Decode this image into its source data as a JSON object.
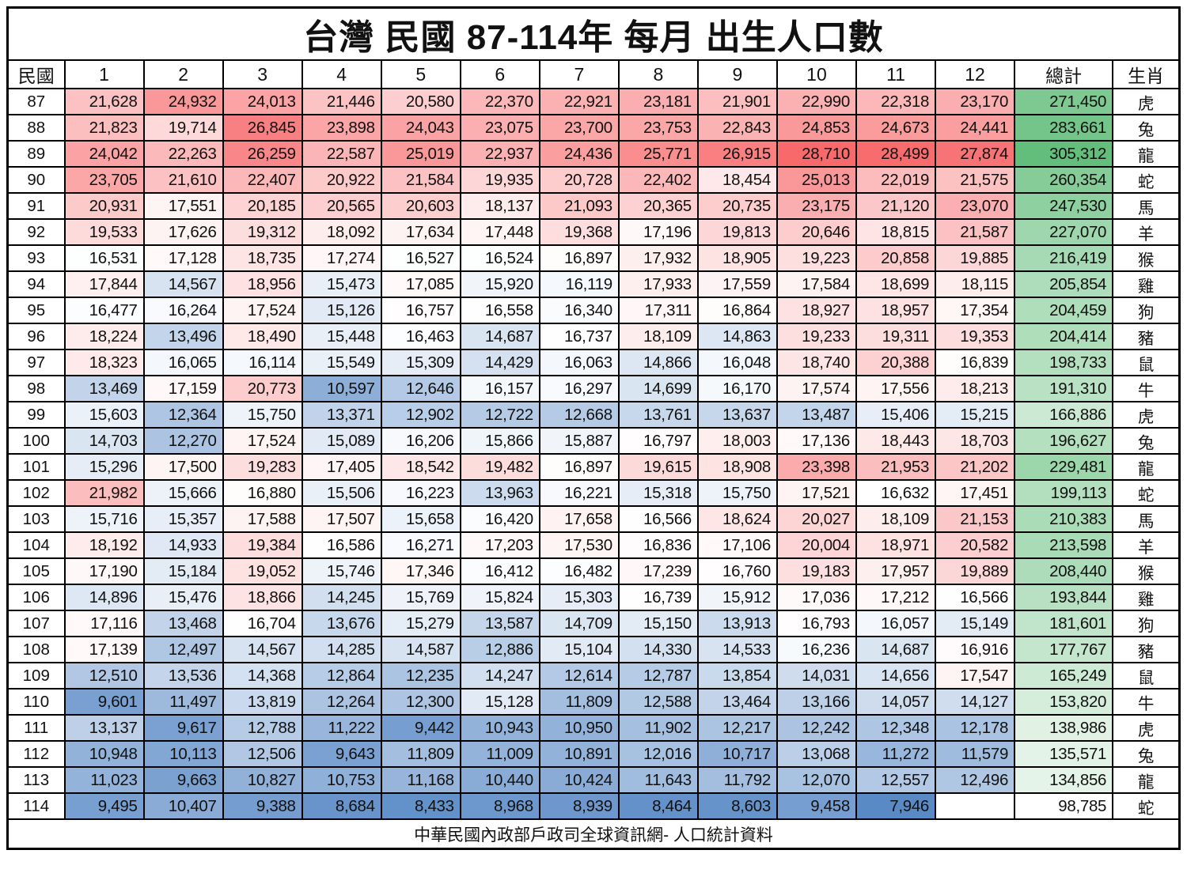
{
  "title": "台灣 民國 87-114年 每月 出生人口數",
  "footer": "中華民國內政部戶政司全球資訊網- 人口統計資料",
  "colors": {
    "heat_high_red": "#F8696B",
    "heat_mid_white": "#FFFFFF",
    "heat_low_blue": "#5A8AC6",
    "total_high_green": "#63BE7B",
    "total_low_white": "#FFFFFF",
    "grid_black": "#000000"
  },
  "chart_data": {
    "type": "heatmap",
    "title": "台灣 民國 87-114年 每月 出生人口數",
    "columns": [
      "民國",
      "1",
      "2",
      "3",
      "4",
      "5",
      "6",
      "7",
      "8",
      "9",
      "10",
      "11",
      "12",
      "總計",
      "生肖"
    ],
    "x_labels": [
      "1",
      "2",
      "3",
      "4",
      "5",
      "6",
      "7",
      "8",
      "9",
      "10",
      "11",
      "12"
    ],
    "row_label_header": "民國",
    "total_header": "總計",
    "zodiac_header": "生肖",
    "legend_position": "none",
    "grid": true,
    "rows": [
      {
        "year": "87",
        "months": [
          21628,
          24932,
          24013,
          21446,
          20580,
          22370,
          22921,
          23181,
          21901,
          22990,
          22318,
          23170
        ],
        "total": 271450,
        "zodiac": "虎"
      },
      {
        "year": "88",
        "months": [
          21823,
          19714,
          26845,
          23898,
          24043,
          23075,
          23700,
          23753,
          22843,
          24853,
          24673,
          24441
        ],
        "total": 283661,
        "zodiac": "兔"
      },
      {
        "year": "89",
        "months": [
          24042,
          22263,
          26259,
          22587,
          25019,
          22937,
          24436,
          25771,
          26915,
          28710,
          28499,
          27874
        ],
        "total": 305312,
        "zodiac": "龍"
      },
      {
        "year": "90",
        "months": [
          23705,
          21610,
          22407,
          20922,
          21584,
          19935,
          20728,
          22402,
          18454,
          25013,
          22019,
          21575
        ],
        "total": 260354,
        "zodiac": "蛇"
      },
      {
        "year": "91",
        "months": [
          20931,
          17551,
          20185,
          20565,
          20603,
          18137,
          21093,
          20365,
          20735,
          23175,
          21120,
          23070
        ],
        "total": 247530,
        "zodiac": "馬"
      },
      {
        "year": "92",
        "months": [
          19533,
          17626,
          19312,
          18092,
          17634,
          17448,
          19368,
          17196,
          19813,
          20646,
          18815,
          21587
        ],
        "total": 227070,
        "zodiac": "羊"
      },
      {
        "year": "93",
        "months": [
          16531,
          17128,
          18735,
          17274,
          16527,
          16524,
          16897,
          17932,
          18905,
          19223,
          20858,
          19885
        ],
        "total": 216419,
        "zodiac": "猴"
      },
      {
        "year": "94",
        "months": [
          17844,
          14567,
          18956,
          15473,
          17085,
          15920,
          16119,
          17933,
          17559,
          17584,
          18699,
          18115
        ],
        "total": 205854,
        "zodiac": "雞"
      },
      {
        "year": "95",
        "months": [
          16477,
          16264,
          17524,
          15126,
          16757,
          16558,
          16340,
          17311,
          16864,
          18927,
          18957,
          17354
        ],
        "total": 204459,
        "zodiac": "狗"
      },
      {
        "year": "96",
        "months": [
          18224,
          13496,
          18490,
          15448,
          16463,
          14687,
          16737,
          18109,
          14863,
          19233,
          19311,
          19353
        ],
        "total": 204414,
        "zodiac": "豬"
      },
      {
        "year": "97",
        "months": [
          18323,
          16065,
          16114,
          15549,
          15309,
          14429,
          16063,
          14866,
          16048,
          18740,
          20388,
          16839
        ],
        "total": 198733,
        "zodiac": "鼠"
      },
      {
        "year": "98",
        "months": [
          13469,
          17159,
          20773,
          10597,
          12646,
          16157,
          16297,
          14699,
          16170,
          17574,
          17556,
          18213
        ],
        "total": 191310,
        "zodiac": "牛"
      },
      {
        "year": "99",
        "months": [
          15603,
          12364,
          15750,
          13371,
          12902,
          12722,
          12668,
          13761,
          13637,
          13487,
          15406,
          15215
        ],
        "total": 166886,
        "zodiac": "虎"
      },
      {
        "year": "100",
        "months": [
          14703,
          12270,
          17524,
          15089,
          16206,
          15866,
          15887,
          16797,
          18003,
          17136,
          18443,
          18703
        ],
        "total": 196627,
        "zodiac": "兔"
      },
      {
        "year": "101",
        "months": [
          15296,
          17500,
          19283,
          17405,
          18542,
          19482,
          16897,
          19615,
          18908,
          23398,
          21953,
          21202
        ],
        "total": 229481,
        "zodiac": "龍"
      },
      {
        "year": "102",
        "months": [
          21982,
          15666,
          16880,
          15506,
          16223,
          13963,
          16221,
          15318,
          15750,
          17521,
          16632,
          17451
        ],
        "total": 199113,
        "zodiac": "蛇"
      },
      {
        "year": "103",
        "months": [
          15716,
          15357,
          17588,
          17507,
          15658,
          16420,
          17658,
          16566,
          18624,
          20027,
          18109,
          21153
        ],
        "total": 210383,
        "zodiac": "馬"
      },
      {
        "year": "104",
        "months": [
          18192,
          14933,
          19384,
          16586,
          16271,
          17203,
          17530,
          16836,
          17106,
          20004,
          18971,
          20582
        ],
        "total": 213598,
        "zodiac": "羊"
      },
      {
        "year": "105",
        "months": [
          17190,
          15184,
          19052,
          15746,
          17346,
          16412,
          16482,
          17239,
          16760,
          19183,
          17957,
          19889
        ],
        "total": 208440,
        "zodiac": "猴"
      },
      {
        "year": "106",
        "months": [
          14896,
          15476,
          18866,
          14245,
          15769,
          15824,
          15303,
          16739,
          15912,
          17036,
          17212,
          16566
        ],
        "total": 193844,
        "zodiac": "雞"
      },
      {
        "year": "107",
        "months": [
          17116,
          13468,
          16704,
          13676,
          15279,
          13587,
          14709,
          15150,
          13913,
          16793,
          16057,
          15149
        ],
        "total": 181601,
        "zodiac": "狗"
      },
      {
        "year": "108",
        "months": [
          17139,
          12497,
          14567,
          14285,
          14587,
          12886,
          15104,
          14330,
          14533,
          16236,
          14687,
          16916
        ],
        "total": 177767,
        "zodiac": "豬"
      },
      {
        "year": "109",
        "months": [
          12510,
          13536,
          14368,
          12864,
          12235,
          14247,
          12614,
          12787,
          13854,
          14031,
          14656,
          17547
        ],
        "total": 165249,
        "zodiac": "鼠"
      },
      {
        "year": "110",
        "months": [
          9601,
          11497,
          13819,
          12264,
          12300,
          15128,
          11809,
          12588,
          13464,
          13166,
          14057,
          14127
        ],
        "total": 153820,
        "zodiac": "牛"
      },
      {
        "year": "111",
        "months": [
          13137,
          9617,
          12788,
          11222,
          9442,
          10943,
          10950,
          11902,
          12217,
          12242,
          12348,
          12178
        ],
        "total": 138986,
        "zodiac": "虎"
      },
      {
        "year": "112",
        "months": [
          10948,
          10113,
          12506,
          9643,
          11809,
          11009,
          10891,
          12016,
          10717,
          13068,
          11272,
          11579
        ],
        "total": 135571,
        "zodiac": "兔"
      },
      {
        "year": "113",
        "months": [
          11023,
          9663,
          10827,
          10753,
          11168,
          10440,
          10424,
          11643,
          11792,
          12070,
          12557,
          12496
        ],
        "total": 134856,
        "zodiac": "龍"
      },
      {
        "year": "114",
        "months": [
          9495,
          10407,
          9388,
          8684,
          8433,
          8968,
          8939,
          8464,
          8603,
          9458,
          7946,
          null
        ],
        "total": 98785,
        "zodiac": "蛇"
      }
    ]
  }
}
